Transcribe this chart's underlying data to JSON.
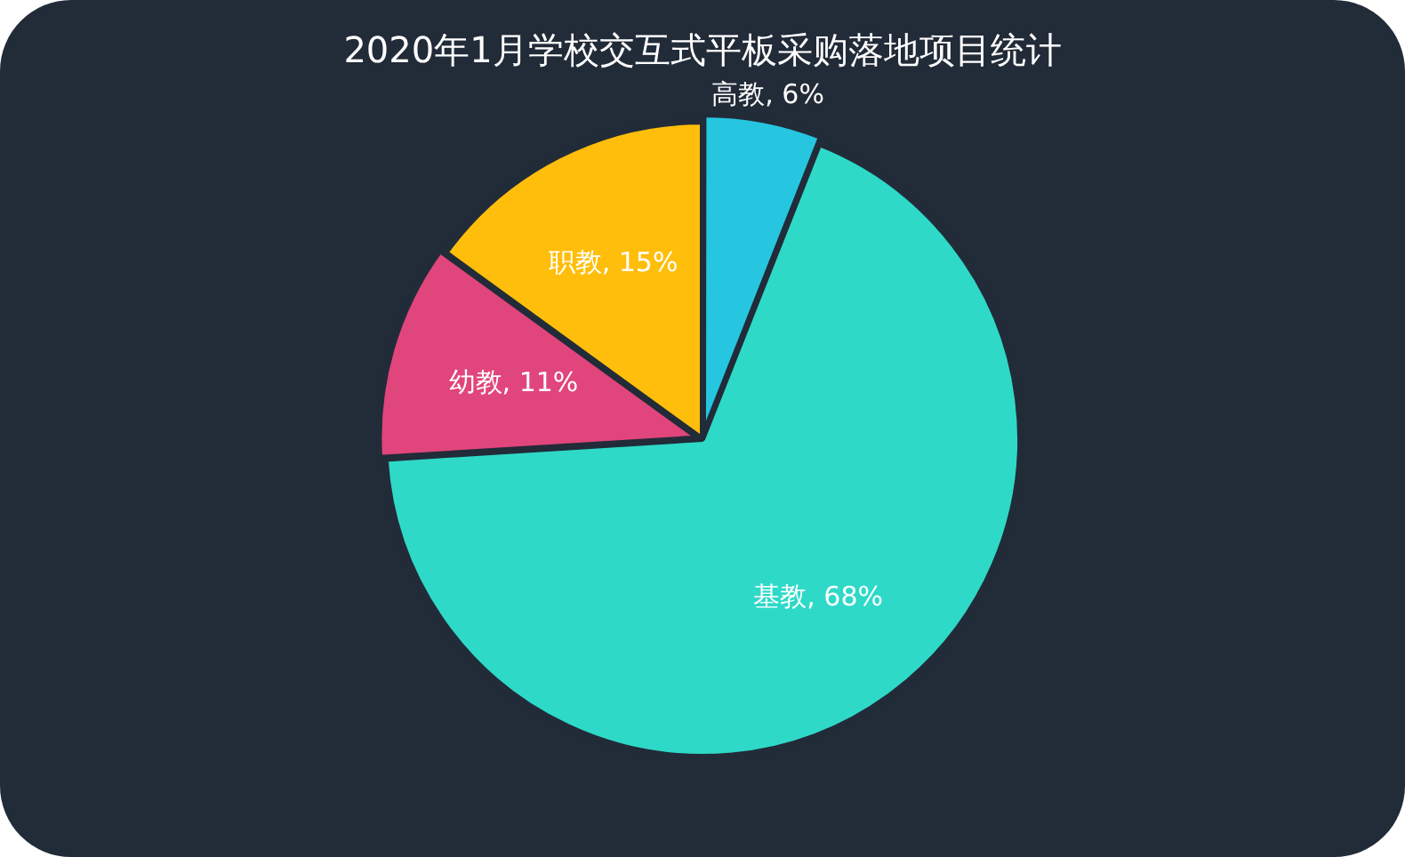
{
  "chart_data": {
    "type": "pie",
    "title": "2020年1月学校交互式平板采购落地项目统计",
    "categories": [
      "高教",
      "基教",
      "幼教",
      "职教"
    ],
    "values": [
      6,
      68,
      11,
      15
    ],
    "value_labels": [
      "6%",
      "68%",
      "11%",
      "15%"
    ],
    "colors": [
      "#26c6e0",
      "#2ed9c8",
      "#e0457b",
      "#ffbe0b"
    ],
    "legend": false
  }
}
